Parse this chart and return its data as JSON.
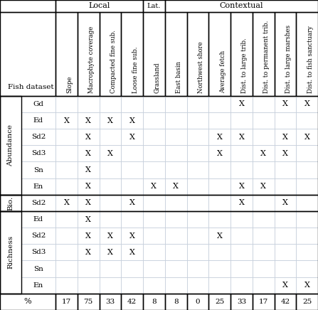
{
  "col_headers": [
    "Slope",
    "Macrophyte coverage",
    "Compacted fine sub.",
    "Loose fine sub.",
    "Grassland",
    "East basin",
    "Northwest shore",
    "Average fetch",
    "Dist. to large trib.",
    "Dist. to permanent trib.",
    "Dist. to large marshes",
    "Dist. to fish sanctuary"
  ],
  "row_groups": [
    {
      "label": "Abundance",
      "rows": [
        "Gd",
        "Ed",
        "Sd2",
        "Sd3",
        "Sn",
        "En"
      ]
    },
    {
      "label": "Bio.",
      "rows": [
        "Sd2"
      ]
    },
    {
      "label": "Richness",
      "rows": [
        "Ed",
        "Sd2",
        "Sd3",
        "Sn",
        "En"
      ]
    }
  ],
  "data": {
    "Abundance_Gd": [
      0,
      0,
      0,
      0,
      0,
      0,
      0,
      0,
      1,
      0,
      1,
      1
    ],
    "Abundance_Ed": [
      1,
      1,
      1,
      1,
      0,
      0,
      0,
      0,
      0,
      0,
      0,
      0
    ],
    "Abundance_Sd2": [
      0,
      1,
      0,
      1,
      0,
      0,
      0,
      1,
      1,
      0,
      1,
      1
    ],
    "Abundance_Sd3": [
      0,
      1,
      1,
      0,
      0,
      0,
      0,
      1,
      0,
      1,
      1,
      0
    ],
    "Abundance_Sn": [
      0,
      1,
      0,
      0,
      0,
      0,
      0,
      0,
      0,
      0,
      0,
      0
    ],
    "Abundance_En": [
      0,
      1,
      0,
      0,
      1,
      1,
      0,
      0,
      1,
      1,
      0,
      0
    ],
    "Bio._Sd2": [
      1,
      1,
      0,
      1,
      0,
      0,
      0,
      0,
      1,
      0,
      1,
      0
    ],
    "Richness_Ed": [
      0,
      1,
      0,
      0,
      0,
      0,
      0,
      0,
      0,
      0,
      0,
      0
    ],
    "Richness_Sd2": [
      0,
      1,
      1,
      1,
      0,
      0,
      0,
      1,
      0,
      0,
      0,
      0
    ],
    "Richness_Sd3": [
      0,
      1,
      1,
      1,
      0,
      0,
      0,
      0,
      0,
      0,
      0,
      0
    ],
    "Richness_Sn": [
      0,
      0,
      0,
      0,
      0,
      0,
      0,
      0,
      0,
      0,
      0,
      0
    ],
    "Richness_En": [
      0,
      0,
      0,
      0,
      0,
      0,
      0,
      0,
      0,
      0,
      1,
      1
    ]
  },
  "percentages": [
    17,
    75,
    33,
    42,
    8,
    8,
    0,
    25,
    33,
    17,
    42,
    25
  ],
  "bg_color": "#ffffff",
  "line_color": "#000000",
  "grid_color": "#c8d0dc",
  "group_header_bg": "#ffffff"
}
